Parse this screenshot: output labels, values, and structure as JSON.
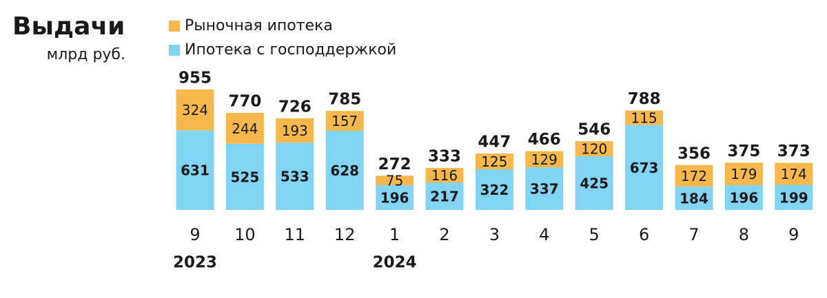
{
  "chart_data": {
    "type": "stacked_bar",
    "title": "Выдачи",
    "subtitle": "млрд руб.",
    "categories": [
      "9",
      "10",
      "11",
      "12",
      "1",
      "2",
      "3",
      "4",
      "5",
      "6",
      "7",
      "8",
      "9"
    ],
    "year_labels": [
      "2023",
      null,
      null,
      null,
      "2024",
      null,
      null,
      null,
      null,
      null,
      null,
      null,
      null
    ],
    "series": [
      {
        "name": "Ипотека с господдержкой",
        "color": "#82d4f5",
        "values": [
          631,
          525,
          533,
          628,
          196,
          217,
          322,
          337,
          425,
          673,
          184,
          196,
          199
        ]
      },
      {
        "name": "Рыночная ипотека",
        "color": "#f6b84c",
        "values": [
          324,
          244,
          193,
          157,
          75,
          116,
          125,
          129,
          120,
          115,
          172,
          179,
          174
        ]
      }
    ],
    "totals": [
      955,
      770,
      726,
      785,
      272,
      333,
      447,
      466,
      546,
      788,
      356,
      375,
      373
    ]
  }
}
